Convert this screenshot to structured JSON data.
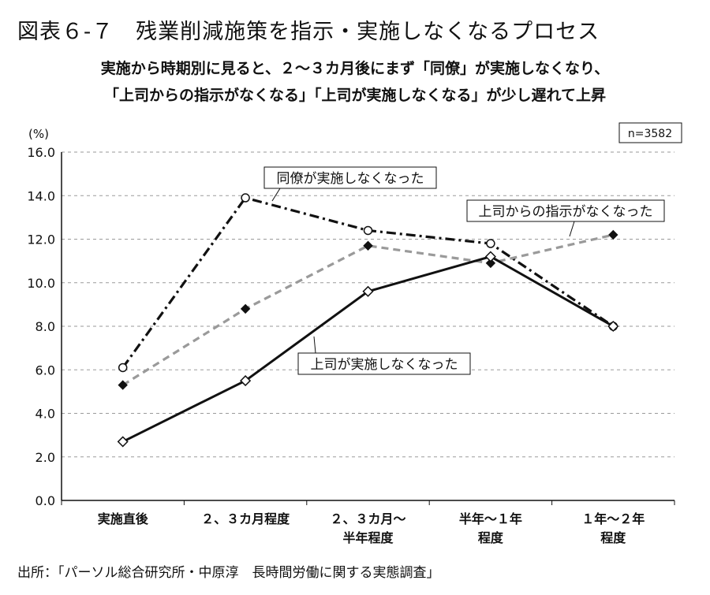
{
  "figure": {
    "title": "図表６-７　残業削減施策を指示・実施しなくなるプロセス",
    "subtitle_line1": "実施から時期別に見ると、２〜３カ月後にまず「同僚」が実施しなくなり、",
    "subtitle_line2": "「上司からの指示がなくなる」「上司が実施しなくなる」が少し遅れて上昇",
    "source": "出所：「パーソル総合研究所・中原淳　長時間労働に関する実態調査」"
  },
  "chart_data": {
    "type": "line",
    "ylabel": "(%)",
    "ylim": [
      0,
      16
    ],
    "yticks": [
      "0.0",
      "2.0",
      "4.0",
      "6.0",
      "8.0",
      "10.0",
      "12.0",
      "14.0",
      "16.0"
    ],
    "grid": true,
    "sample_note": "n=3582",
    "categories": [
      [
        "実施直後"
      ],
      [
        "２、３カ月程度"
      ],
      [
        "２、３カ月〜",
        "半年程度"
      ],
      [
        "半年〜１年",
        "程度"
      ],
      [
        "１年〜２年",
        "程度"
      ]
    ],
    "series": [
      {
        "name": "同僚が実施しなくなった",
        "style": "dash-dot",
        "color": "#111111",
        "marker": "open-circle",
        "values": [
          6.1,
          13.9,
          12.4,
          11.8,
          8.0
        ]
      },
      {
        "name": "上司からの指示がなくなった",
        "style": "dashed",
        "color": "#9a9a9a",
        "marker": "filled-diamond",
        "values": [
          5.3,
          8.8,
          11.7,
          10.9,
          12.2
        ]
      },
      {
        "name": "上司が実施しなくなった",
        "style": "solid",
        "color": "#111111",
        "marker": "open-diamond",
        "values": [
          2.7,
          5.5,
          9.6,
          11.2,
          8.0
        ]
      }
    ]
  }
}
